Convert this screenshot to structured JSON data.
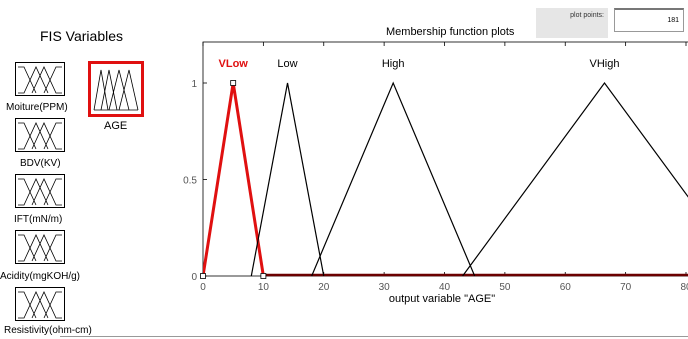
{
  "fis_variables": {
    "title": "FIS Variables",
    "inputs": [
      {
        "label": "Moiture(PPM)"
      },
      {
        "label": "BDV(KV)"
      },
      {
        "label": "IFT(mN/m)"
      },
      {
        "label": "Acidity(mgKOH/g)"
      },
      {
        "label": "Resistivity(ohm-cm)"
      }
    ],
    "output": {
      "label": "AGE"
    }
  },
  "plot_points": {
    "label": "plot points:",
    "value": "181"
  },
  "plot": {
    "title": "Membership function plots",
    "xlabel": "output variable \"AGE\""
  },
  "colors": {
    "selected": "#e01010",
    "line": "#000000",
    "axis_base": "#6b0000"
  },
  "chart_data": {
    "type": "line",
    "xlim": [
      0,
      80
    ],
    "ylim": [
      0,
      1
    ],
    "xticks": [
      0,
      10,
      20,
      30,
      40,
      50,
      60,
      70,
      80
    ],
    "yticks": [
      0,
      0.5,
      1
    ],
    "series": [
      {
        "name": "VLow",
        "points": [
          [
            0,
            0
          ],
          [
            5,
            1
          ],
          [
            10,
            0
          ]
        ],
        "highlighted": true
      },
      {
        "name": "Low",
        "points": [
          [
            8,
            0
          ],
          [
            14,
            1
          ],
          [
            20,
            0
          ]
        ]
      },
      {
        "name": "High",
        "points": [
          [
            18,
            0
          ],
          [
            31.5,
            1
          ],
          [
            45,
            0
          ]
        ]
      },
      {
        "name": "VHigh",
        "points": [
          [
            43,
            0
          ],
          [
            66.5,
            1
          ],
          [
            90,
            0
          ]
        ]
      }
    ]
  }
}
